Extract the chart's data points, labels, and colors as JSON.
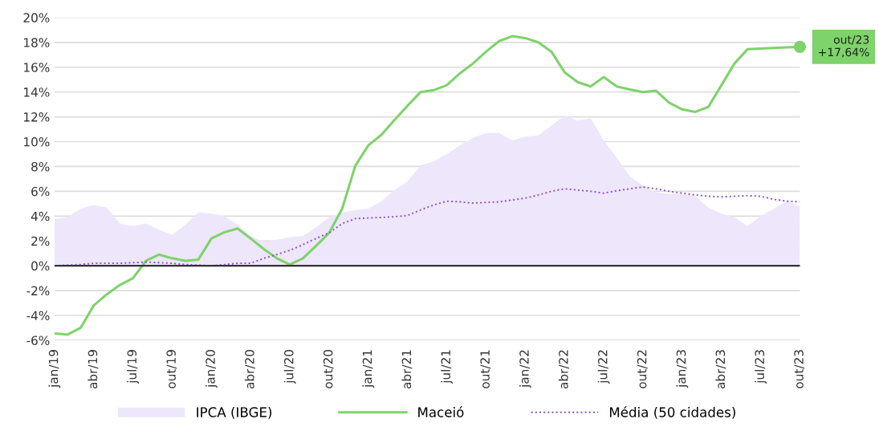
{
  "chart_data": {
    "type": "line",
    "categories": [
      "jan/19",
      null,
      null,
      "abr/19",
      null,
      null,
      "jul/19",
      null,
      null,
      "out/19",
      null,
      null,
      "jan/20",
      null,
      null,
      "abr/20",
      null,
      null,
      "jul/20",
      null,
      null,
      "out/20",
      null,
      null,
      "jan/21",
      null,
      null,
      "abr/21",
      null,
      null,
      "jul/21",
      null,
      null,
      "out/21",
      null,
      null,
      "jan/22",
      null,
      null,
      "abr/22",
      null,
      null,
      "jul/22",
      null,
      null,
      "out/22",
      null,
      null,
      "jan/23",
      null,
      null,
      "abr/23",
      null,
      null,
      "jul/23",
      null,
      null,
      "out/23"
    ],
    "series": [
      {
        "name": "IPCA (IBGE)",
        "type": "area",
        "color": "#eee6fb",
        "values": [
          3.8,
          3.9,
          4.6,
          4.9,
          4.7,
          3.4,
          3.2,
          3.4,
          2.9,
          2.5,
          3.3,
          4.3,
          4.2,
          4.0,
          3.3,
          2.4,
          1.9,
          2.1,
          2.3,
          2.4,
          3.1,
          3.9,
          4.3,
          4.5,
          4.6,
          5.2,
          6.1,
          6.8,
          8.1,
          8.4,
          9.0,
          9.7,
          10.3,
          10.7,
          10.7,
          10.1,
          10.4,
          10.5,
          11.3,
          12.1,
          11.7,
          11.9,
          10.1,
          8.7,
          7.2,
          6.5,
          5.9,
          5.8,
          5.8,
          5.6,
          4.7,
          4.2,
          3.9,
          3.2,
          4.0,
          4.6,
          5.2,
          4.8
        ]
      },
      {
        "name": "Maceió",
        "color": "#7ed36a",
        "line_style": "solid",
        "values": [
          -5.45,
          -5.55,
          -5.0,
          -3.2,
          -2.3,
          -1.55,
          -1.0,
          0.4,
          0.9,
          0.6,
          0.4,
          0.5,
          2.2,
          2.7,
          3.0,
          2.2,
          1.35,
          0.6,
          0.1,
          0.6,
          1.6,
          2.65,
          4.6,
          8.05,
          9.7,
          10.55,
          11.75,
          12.9,
          14.0,
          14.15,
          14.55,
          15.5,
          16.3,
          17.25,
          18.1,
          18.5,
          18.35,
          18.0,
          17.25,
          15.6,
          14.8,
          14.45,
          15.2,
          14.45,
          14.2,
          14.0,
          14.1,
          13.15,
          12.6,
          12.4,
          12.8,
          14.55,
          16.3,
          17.45,
          17.5,
          17.55,
          17.6,
          17.64
        ]
      },
      {
        "name": "Média (50 cidades)",
        "color": "#8a4fd0",
        "line_style": "dotted",
        "values": [
          0.0,
          0.05,
          0.1,
          0.2,
          0.2,
          0.2,
          0.25,
          0.3,
          0.25,
          0.2,
          0.1,
          0.05,
          0.0,
          0.1,
          0.2,
          0.2,
          0.6,
          0.9,
          1.25,
          1.7,
          2.2,
          2.65,
          3.4,
          3.8,
          3.85,
          3.9,
          3.95,
          4.05,
          4.5,
          4.9,
          5.2,
          5.15,
          5.05,
          5.1,
          5.15,
          5.3,
          5.45,
          5.7,
          6.0,
          6.2,
          6.1,
          6.0,
          5.85,
          6.05,
          6.2,
          6.35,
          6.2,
          6.0,
          5.85,
          5.7,
          5.6,
          5.55,
          5.6,
          5.65,
          5.6,
          5.35,
          5.2,
          5.15
        ]
      }
    ],
    "ylim": [
      -6,
      20
    ],
    "yticks": [
      {
        "value": -6,
        "label": "-6%"
      },
      {
        "value": -4,
        "label": "-4%"
      },
      {
        "value": -2,
        "label": "-2%"
      },
      {
        "value": 0,
        "label": "0%"
      },
      {
        "value": 2,
        "label": "2%"
      },
      {
        "value": 4,
        "label": "4%"
      },
      {
        "value": 6,
        "label": "6%"
      },
      {
        "value": 8,
        "label": "8%"
      },
      {
        "value": 10,
        "label": "10%"
      },
      {
        "value": 12,
        "label": "12%"
      },
      {
        "value": 14,
        "label": "14%"
      },
      {
        "value": 16,
        "label": "16%"
      },
      {
        "value": 18,
        "label": "18%"
      },
      {
        "value": 20,
        "label": "20%"
      }
    ],
    "ref_lines": [
      {
        "axis": "y",
        "value": 0,
        "color": "#333333"
      }
    ],
    "annotations": [
      {
        "text": "out/23\n+17,64%",
        "x": "out/23",
        "y": 17.64
      }
    ],
    "grid": "y",
    "legend": "bottom"
  }
}
